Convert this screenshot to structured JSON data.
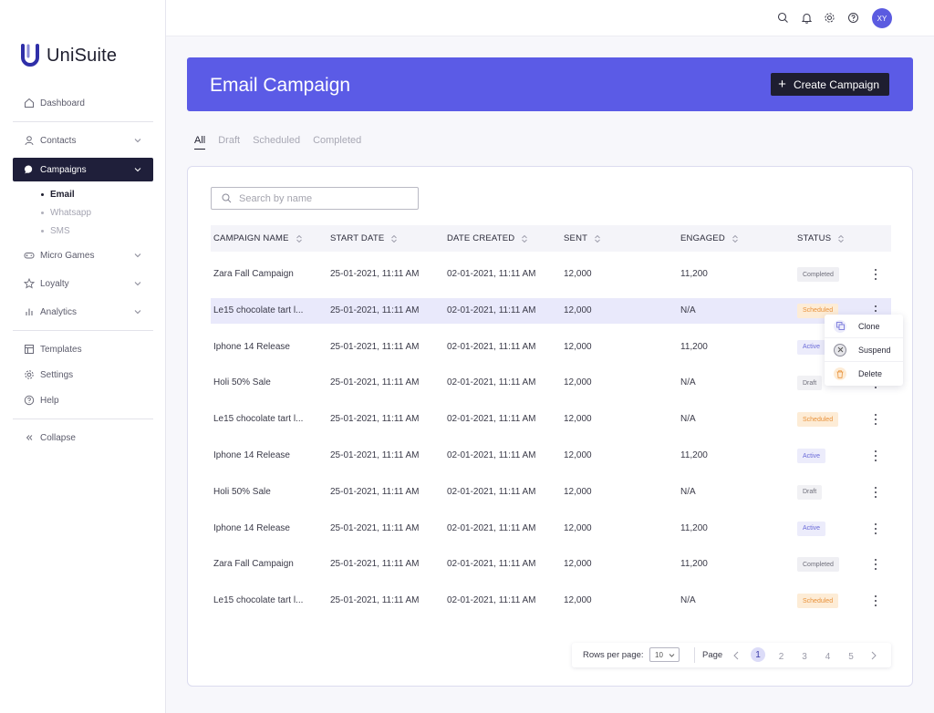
{
  "brand": {
    "name": "UniSuite",
    "logo_color": "#2f2fa8"
  },
  "sidebar": {
    "dashboard": "Dashboard",
    "contacts": "Contacts",
    "campaigns": "Campaigns",
    "campaign_sub": [
      "Email",
      "Whatsapp",
      "SMS"
    ],
    "micro_games": "Micro Games",
    "loyalty": "Loyalty",
    "analytics": "Analytics",
    "templates": "Templates",
    "settings": "Settings",
    "help": "Help",
    "collapse": "Collapse"
  },
  "topbar": {
    "icons": [
      "search-icon",
      "bell-icon",
      "gear-icon",
      "help-icon"
    ],
    "avatar_initials": "XY",
    "avatar_color": "#5b5be0"
  },
  "hero": {
    "title": "Email Campaign",
    "create_button": "Create Campaign",
    "color": "#5b5be6"
  },
  "tabs": [
    "All",
    "Draft",
    "Scheduled",
    "Completed"
  ],
  "search": {
    "placeholder": "Search by name"
  },
  "table": {
    "columns": [
      "CAMPAIGN NAME",
      "START DATE",
      "DATE CREATED",
      "SENT",
      "ENGAGED",
      "STATUS"
    ],
    "rows": [
      {
        "name": "Zara Fall Campaign",
        "start": "25-01-2021, 11:11 AM",
        "created": "02-01-2021, 11:11 AM",
        "sent": "12,000",
        "engaged": "11,200",
        "status": "Completed"
      },
      {
        "name": "Le15 chocolate tart l...",
        "start": "25-01-2021, 11:11 AM",
        "created": "02-01-2021, 11:11 AM",
        "sent": "12,000",
        "engaged": "N/A",
        "status": "Scheduled"
      },
      {
        "name": "Iphone 14 Release",
        "start": "25-01-2021, 11:11 AM",
        "created": "02-01-2021, 11:11 AM",
        "sent": "12,000",
        "engaged": "11,200",
        "status": "Active"
      },
      {
        "name": "Holi 50% Sale",
        "start": "25-01-2021, 11:11 AM",
        "created": "02-01-2021, 11:11 AM",
        "sent": "12,000",
        "engaged": "N/A",
        "status": "Draft"
      },
      {
        "name": "Le15 chocolate tart l...",
        "start": "25-01-2021, 11:11 AM",
        "created": "02-01-2021, 11:11 AM",
        "sent": "12,000",
        "engaged": "N/A",
        "status": "Scheduled"
      },
      {
        "name": "Iphone 14 Release",
        "start": "25-01-2021, 11:11 AM",
        "created": "02-01-2021, 11:11 AM",
        "sent": "12,000",
        "engaged": "11,200",
        "status": "Active"
      },
      {
        "name": "Holi 50% Sale",
        "start": "25-01-2021, 11:11 AM",
        "created": "02-01-2021, 11:11 AM",
        "sent": "12,000",
        "engaged": "N/A",
        "status": "Draft"
      },
      {
        "name": "Iphone 14 Release",
        "start": "25-01-2021, 11:11 AM",
        "created": "02-01-2021, 11:11 AM",
        "sent": "12,000",
        "engaged": "11,200",
        "status": "Active"
      },
      {
        "name": "Zara Fall Campaign",
        "start": "25-01-2021, 11:11 AM",
        "created": "02-01-2021, 11:11 AM",
        "sent": "12,000",
        "engaged": "11,200",
        "status": "Completed"
      },
      {
        "name": "Le15 chocolate tart l...",
        "start": "25-01-2021, 11:11 AM",
        "created": "02-01-2021, 11:11 AM",
        "sent": "12,000",
        "engaged": "N/A",
        "status": "Scheduled"
      }
    ]
  },
  "row_menu": {
    "items": [
      "Clone",
      "Suspend",
      "Delete"
    ]
  },
  "pagination": {
    "rows_label": "Rows per page:",
    "rows_value": "10",
    "page_label": "Page",
    "pages": [
      "1",
      "2",
      "3",
      "4",
      "5"
    ],
    "current": "1"
  }
}
